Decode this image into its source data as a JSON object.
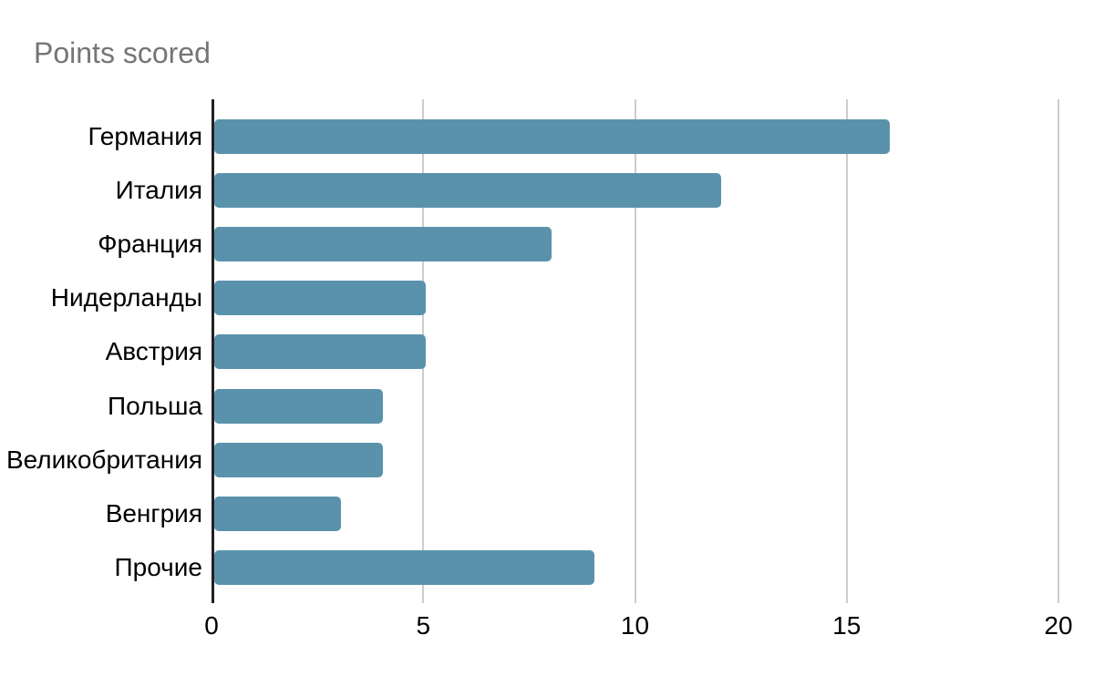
{
  "chart_data": {
    "type": "bar",
    "orientation": "horizontal",
    "title": "Points scored",
    "categories": [
      "Германия",
      "Италия",
      "Франция",
      "Нидерланды",
      "Австрия",
      "Польша",
      "Великобритания",
      "Венгрия",
      "Прочие"
    ],
    "values": [
      16,
      12,
      8,
      5,
      5,
      4,
      4,
      3,
      9
    ],
    "xlabel": "",
    "ylabel": "",
    "xlim": [
      0,
      20
    ],
    "x_ticks": [
      0,
      5,
      10,
      15,
      20
    ],
    "grid": "vertical-only",
    "legend": "none",
    "colors": {
      "bar": "#5a92ab",
      "gridline": "#cccccc",
      "axis_line": "#212121",
      "tick_label": "#000000",
      "title": "#757575",
      "background": "#ffffff"
    }
  }
}
